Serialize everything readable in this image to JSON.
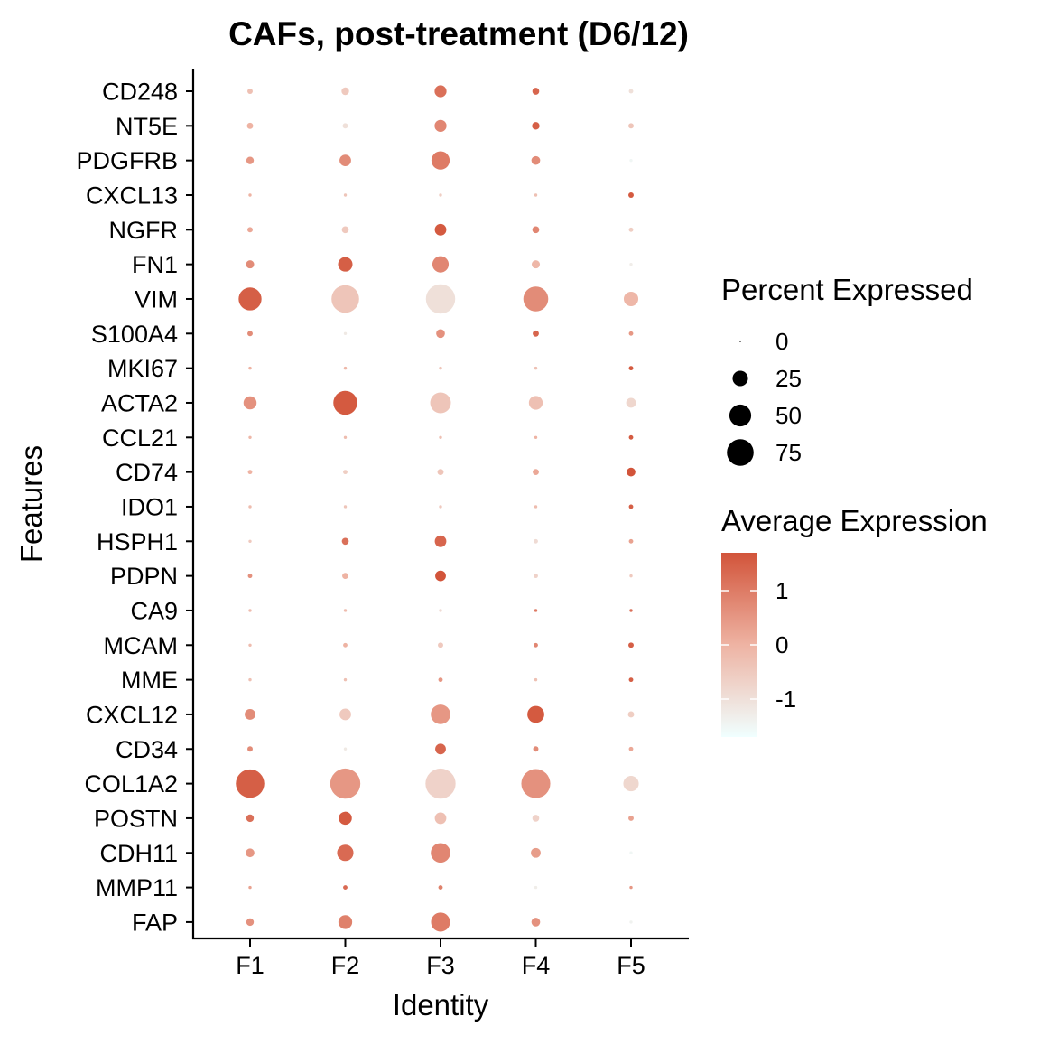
{
  "chart_data": {
    "type": "scatter",
    "subtype": "dot-plot",
    "title": "CAFs, post-treatment (D6/12)",
    "xlabel": "Identity",
    "ylabel": "Features",
    "x_categories": [
      "F1",
      "F2",
      "F3",
      "F4",
      "F5"
    ],
    "y_categories": [
      "CD248",
      "NT5E",
      "PDGFRB",
      "CXCL13",
      "NGFR",
      "FN1",
      "VIM",
      "S100A4",
      "MKI67",
      "ACTA2",
      "CCL21",
      "CD74",
      "IDO1",
      "HSPH1",
      "PDPN",
      "CA9",
      "MCAM",
      "MME",
      "CXCL12",
      "CD34",
      "COL1A2",
      "POSTN",
      "CDH11",
      "MMP11",
      "FAP"
    ],
    "size_encoding": "Percent Expressed",
    "color_encoding": "Average Expression",
    "points": [
      {
        "feature": "CD248",
        "identity": "F1",
        "pct": 3,
        "avg": -0.3
      },
      {
        "feature": "CD248",
        "identity": "F2",
        "pct": 6,
        "avg": -0.5
      },
      {
        "feature": "CD248",
        "identity": "F3",
        "pct": 15,
        "avg": 1.2
      },
      {
        "feature": "CD248",
        "identity": "F4",
        "pct": 5,
        "avg": 1.4
      },
      {
        "feature": "CD248",
        "identity": "F5",
        "pct": 2,
        "avg": -1.0
      },
      {
        "feature": "NT5E",
        "identity": "F1",
        "pct": 4,
        "avg": 0.0
      },
      {
        "feature": "NT5E",
        "identity": "F2",
        "pct": 3,
        "avg": -1.0
      },
      {
        "feature": "NT5E",
        "identity": "F3",
        "pct": 15,
        "avg": 0.8
      },
      {
        "feature": "NT5E",
        "identity": "F4",
        "pct": 6,
        "avg": 1.5
      },
      {
        "feature": "NT5E",
        "identity": "F5",
        "pct": 3,
        "avg": -0.4
      },
      {
        "feature": "PDGFRB",
        "identity": "F1",
        "pct": 6,
        "avg": 0.5
      },
      {
        "feature": "PDGFRB",
        "identity": "F2",
        "pct": 14,
        "avg": 0.7
      },
      {
        "feature": "PDGFRB",
        "identity": "F3",
        "pct": 35,
        "avg": 1.0
      },
      {
        "feature": "PDGFRB",
        "identity": "F4",
        "pct": 8,
        "avg": 0.7
      },
      {
        "feature": "PDGFRB",
        "identity": "F5",
        "pct": 1,
        "avg": -1.5
      },
      {
        "feature": "CXCL13",
        "identity": "F1",
        "pct": 1,
        "avg": 0.0
      },
      {
        "feature": "CXCL13",
        "identity": "F2",
        "pct": 1,
        "avg": -0.4
      },
      {
        "feature": "CXCL13",
        "identity": "F3",
        "pct": 1,
        "avg": -0.6
      },
      {
        "feature": "CXCL13",
        "identity": "F4",
        "pct": 1,
        "avg": -0.3
      },
      {
        "feature": "CXCL13",
        "identity": "F5",
        "pct": 3,
        "avg": 1.6
      },
      {
        "feature": "NGFR",
        "identity": "F1",
        "pct": 3,
        "avg": 0.2
      },
      {
        "feature": "NGFR",
        "identity": "F2",
        "pct": 5,
        "avg": -0.5
      },
      {
        "feature": "NGFR",
        "identity": "F3",
        "pct": 14,
        "avg": 1.6
      },
      {
        "feature": "NGFR",
        "identity": "F4",
        "pct": 5,
        "avg": 0.8
      },
      {
        "feature": "NGFR",
        "identity": "F5",
        "pct": 2,
        "avg": -0.6
      },
      {
        "feature": "FN1",
        "identity": "F1",
        "pct": 7,
        "avg": 0.7
      },
      {
        "feature": "FN1",
        "identity": "F2",
        "pct": 22,
        "avg": 1.5
      },
      {
        "feature": "FN1",
        "identity": "F3",
        "pct": 28,
        "avg": 0.8
      },
      {
        "feature": "FN1",
        "identity": "F4",
        "pct": 7,
        "avg": -0.1
      },
      {
        "feature": "FN1",
        "identity": "F5",
        "pct": 1,
        "avg": -1.3
      },
      {
        "feature": "VIM",
        "identity": "F1",
        "pct": 55,
        "avg": 1.5
      },
      {
        "feature": "VIM",
        "identity": "F2",
        "pct": 80,
        "avg": -0.4
      },
      {
        "feature": "VIM",
        "identity": "F3",
        "pct": 90,
        "avg": -1.0
      },
      {
        "feature": "VIM",
        "identity": "F4",
        "pct": 65,
        "avg": 0.7
      },
      {
        "feature": "VIM",
        "identity": "F5",
        "pct": 22,
        "avg": -0.1
      },
      {
        "feature": "S100A4",
        "identity": "F1",
        "pct": 3,
        "avg": 0.7
      },
      {
        "feature": "S100A4",
        "identity": "F2",
        "pct": 1,
        "avg": -1.2
      },
      {
        "feature": "S100A4",
        "identity": "F3",
        "pct": 8,
        "avg": 0.6
      },
      {
        "feature": "S100A4",
        "identity": "F4",
        "pct": 4,
        "avg": 1.4
      },
      {
        "feature": "S100A4",
        "identity": "F5",
        "pct": 2,
        "avg": 0.5
      },
      {
        "feature": "MKI67",
        "identity": "F1",
        "pct": 1,
        "avg": 0.0
      },
      {
        "feature": "MKI67",
        "identity": "F2",
        "pct": 1,
        "avg": -0.1
      },
      {
        "feature": "MKI67",
        "identity": "F3",
        "pct": 1,
        "avg": -0.4
      },
      {
        "feature": "MKI67",
        "identity": "F4",
        "pct": 1,
        "avg": -0.3
      },
      {
        "feature": "MKI67",
        "identity": "F5",
        "pct": 2,
        "avg": 1.6
      },
      {
        "feature": "ACTA2",
        "identity": "F1",
        "pct": 18,
        "avg": 0.6
      },
      {
        "feature": "ACTA2",
        "identity": "F2",
        "pct": 60,
        "avg": 1.6
      },
      {
        "feature": "ACTA2",
        "identity": "F3",
        "pct": 45,
        "avg": -0.4
      },
      {
        "feature": "ACTA2",
        "identity": "F4",
        "pct": 20,
        "avg": -0.3
      },
      {
        "feature": "ACTA2",
        "identity": "F5",
        "pct": 10,
        "avg": -0.8
      },
      {
        "feature": "CCL21",
        "identity": "F1",
        "pct": 1,
        "avg": -0.1
      },
      {
        "feature": "CCL21",
        "identity": "F2",
        "pct": 1,
        "avg": -0.2
      },
      {
        "feature": "CCL21",
        "identity": "F3",
        "pct": 1,
        "avg": -0.3
      },
      {
        "feature": "CCL21",
        "identity": "F4",
        "pct": 1,
        "avg": 0.0
      },
      {
        "feature": "CCL21",
        "identity": "F5",
        "pct": 2,
        "avg": 1.6
      },
      {
        "feature": "CD74",
        "identity": "F1",
        "pct": 2,
        "avg": 0.0
      },
      {
        "feature": "CD74",
        "identity": "F2",
        "pct": 2,
        "avg": -0.6
      },
      {
        "feature": "CD74",
        "identity": "F3",
        "pct": 4,
        "avg": -0.4
      },
      {
        "feature": "CD74",
        "identity": "F4",
        "pct": 4,
        "avg": 0.2
      },
      {
        "feature": "CD74",
        "identity": "F5",
        "pct": 8,
        "avg": 1.7
      },
      {
        "feature": "IDO1",
        "identity": "F1",
        "pct": 1,
        "avg": -0.2
      },
      {
        "feature": "IDO1",
        "identity": "F2",
        "pct": 1,
        "avg": -0.4
      },
      {
        "feature": "IDO1",
        "identity": "F3",
        "pct": 1,
        "avg": -0.5
      },
      {
        "feature": "IDO1",
        "identity": "F4",
        "pct": 1,
        "avg": -0.2
      },
      {
        "feature": "IDO1",
        "identity": "F5",
        "pct": 2,
        "avg": 1.5
      },
      {
        "feature": "HSPH1",
        "identity": "F1",
        "pct": 1,
        "avg": -0.5
      },
      {
        "feature": "HSPH1",
        "identity": "F2",
        "pct": 5,
        "avg": 1.2
      },
      {
        "feature": "HSPH1",
        "identity": "F3",
        "pct": 14,
        "avg": 1.4
      },
      {
        "feature": "HSPH1",
        "identity": "F4",
        "pct": 2,
        "avg": -0.9
      },
      {
        "feature": "HSPH1",
        "identity": "F5",
        "pct": 2,
        "avg": 0.3
      },
      {
        "feature": "PDPN",
        "identity": "F1",
        "pct": 2,
        "avg": 0.6
      },
      {
        "feature": "PDPN",
        "identity": "F2",
        "pct": 4,
        "avg": 0.0
      },
      {
        "feature": "PDPN",
        "identity": "F3",
        "pct": 12,
        "avg": 1.7
      },
      {
        "feature": "PDPN",
        "identity": "F4",
        "pct": 2,
        "avg": -0.7
      },
      {
        "feature": "PDPN",
        "identity": "F5",
        "pct": 1,
        "avg": -0.5
      },
      {
        "feature": "CA9",
        "identity": "F1",
        "pct": 1,
        "avg": -0.2
      },
      {
        "feature": "CA9",
        "identity": "F2",
        "pct": 1,
        "avg": -0.2
      },
      {
        "feature": "CA9",
        "identity": "F3",
        "pct": 1,
        "avg": -0.9
      },
      {
        "feature": "CA9",
        "identity": "F4",
        "pct": 1,
        "avg": 1.0
      },
      {
        "feature": "CA9",
        "identity": "F5",
        "pct": 1,
        "avg": 1.2
      },
      {
        "feature": "MCAM",
        "identity": "F1",
        "pct": 1,
        "avg": -0.2
      },
      {
        "feature": "MCAM",
        "identity": "F2",
        "pct": 2,
        "avg": 0.0
      },
      {
        "feature": "MCAM",
        "identity": "F3",
        "pct": 3,
        "avg": -0.5
      },
      {
        "feature": "MCAM",
        "identity": "F4",
        "pct": 2,
        "avg": 0.8
      },
      {
        "feature": "MCAM",
        "identity": "F5",
        "pct": 3,
        "avg": 1.5
      },
      {
        "feature": "MME",
        "identity": "F1",
        "pct": 1,
        "avg": -0.3
      },
      {
        "feature": "MME",
        "identity": "F2",
        "pct": 1,
        "avg": -0.3
      },
      {
        "feature": "MME",
        "identity": "F3",
        "pct": 2,
        "avg": 0.5
      },
      {
        "feature": "MME",
        "identity": "F4",
        "pct": 1,
        "avg": -0.3
      },
      {
        "feature": "MME",
        "identity": "F5",
        "pct": 2,
        "avg": 1.5
      },
      {
        "feature": "CXCL12",
        "identity": "F1",
        "pct": 12,
        "avg": 0.7
      },
      {
        "feature": "CXCL12",
        "identity": "F2",
        "pct": 14,
        "avg": -0.5
      },
      {
        "feature": "CXCL12",
        "identity": "F3",
        "pct": 40,
        "avg": 0.5
      },
      {
        "feature": "CXCL12",
        "identity": "F4",
        "pct": 30,
        "avg": 1.6
      },
      {
        "feature": "CXCL12",
        "identity": "F5",
        "pct": 4,
        "avg": -0.6
      },
      {
        "feature": "CD34",
        "identity": "F1",
        "pct": 3,
        "avg": 0.7
      },
      {
        "feature": "CD34",
        "identity": "F2",
        "pct": 1,
        "avg": -1.2
      },
      {
        "feature": "CD34",
        "identity": "F3",
        "pct": 12,
        "avg": 1.4
      },
      {
        "feature": "CD34",
        "identity": "F4",
        "pct": 3,
        "avg": 0.7
      },
      {
        "feature": "CD34",
        "identity": "F5",
        "pct": 2,
        "avg": 0.2
      },
      {
        "feature": "COL1A2",
        "identity": "F1",
        "pct": 85,
        "avg": 1.5
      },
      {
        "feature": "COL1A2",
        "identity": "F2",
        "pct": 95,
        "avg": 0.5
      },
      {
        "feature": "COL1A2",
        "identity": "F3",
        "pct": 95,
        "avg": -0.7
      },
      {
        "feature": "COL1A2",
        "identity": "F4",
        "pct": 88,
        "avg": 0.6
      },
      {
        "feature": "COL1A2",
        "identity": "F5",
        "pct": 25,
        "avg": -0.8
      },
      {
        "feature": "POSTN",
        "identity": "F1",
        "pct": 6,
        "avg": 1.2
      },
      {
        "feature": "POSTN",
        "identity": "F2",
        "pct": 18,
        "avg": 1.6
      },
      {
        "feature": "POSTN",
        "identity": "F3",
        "pct": 14,
        "avg": -0.3
      },
      {
        "feature": "POSTN",
        "identity": "F4",
        "pct": 5,
        "avg": -0.7
      },
      {
        "feature": "POSTN",
        "identity": "F5",
        "pct": 3,
        "avg": 0.3
      },
      {
        "feature": "CDH11",
        "identity": "F1",
        "pct": 8,
        "avg": 0.5
      },
      {
        "feature": "CDH11",
        "identity": "F2",
        "pct": 28,
        "avg": 1.3
      },
      {
        "feature": "CDH11",
        "identity": "F3",
        "pct": 40,
        "avg": 0.8
      },
      {
        "feature": "CDH11",
        "identity": "F4",
        "pct": 10,
        "avg": 0.4
      },
      {
        "feature": "CDH11",
        "identity": "F5",
        "pct": 1,
        "avg": -1.5
      },
      {
        "feature": "MMP11",
        "identity": "F1",
        "pct": 1,
        "avg": 0.3
      },
      {
        "feature": "MMP11",
        "identity": "F2",
        "pct": 2,
        "avg": 1.3
      },
      {
        "feature": "MMP11",
        "identity": "F3",
        "pct": 2,
        "avg": 0.9
      },
      {
        "feature": "MMP11",
        "identity": "F4",
        "pct": 1,
        "avg": -1.3
      },
      {
        "feature": "MMP11",
        "identity": "F5",
        "pct": 1,
        "avg": 0.5
      },
      {
        "feature": "FAP",
        "identity": "F1",
        "pct": 6,
        "avg": 0.6
      },
      {
        "feature": "FAP",
        "identity": "F2",
        "pct": 20,
        "avg": 0.9
      },
      {
        "feature": "FAP",
        "identity": "F3",
        "pct": 38,
        "avg": 1.0
      },
      {
        "feature": "FAP",
        "identity": "F4",
        "pct": 8,
        "avg": 0.6
      },
      {
        "feature": "FAP",
        "identity": "F5",
        "pct": 1,
        "avg": -1.4
      }
    ],
    "size_legend": {
      "title": "Percent Expressed",
      "breaks": [
        0,
        25,
        50,
        75
      ],
      "labels": [
        "0",
        "25",
        "50",
        "75"
      ],
      "pct_max": 100
    },
    "color_legend": {
      "title": "Average Expression",
      "breaks": [
        1,
        0,
        -1
      ],
      "labels": [
        "1",
        "0",
        "-1"
      ],
      "min": -1.7,
      "max": 1.7,
      "low_color": "#F0FFFF",
      "mid_color": "#EEB3A3",
      "high_color": "#D2543A"
    },
    "grid": false,
    "legend_position": "right"
  }
}
